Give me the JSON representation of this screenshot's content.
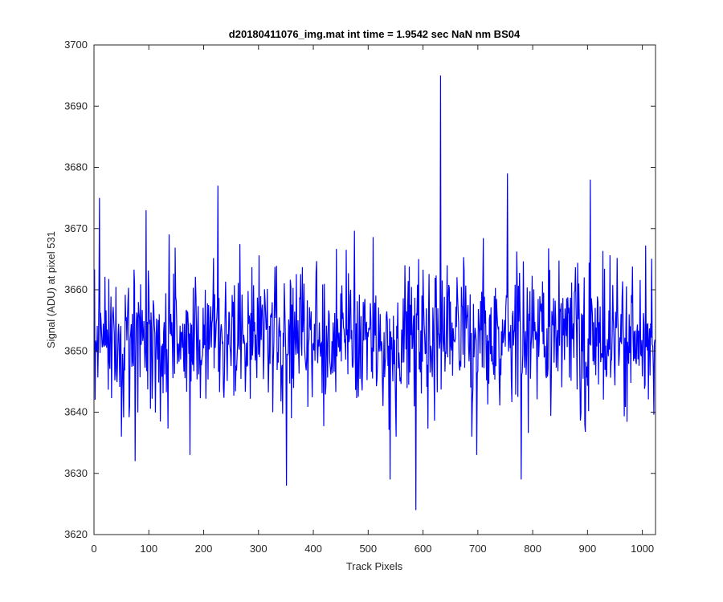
{
  "chart_data": {
    "type": "line",
    "title": "d20180411076_img.mat int time = 1.9542 sec  NaN nm BS04",
    "xlabel": "Track Pixels",
    "ylabel": "Signal (ADU) at pixel 531",
    "xlim": [
      0,
      1024
    ],
    "ylim": [
      3620,
      3700
    ],
    "xticks": [
      0,
      100,
      200,
      300,
      400,
      500,
      600,
      700,
      800,
      900,
      1000
    ],
    "yticks": [
      3620,
      3630,
      3640,
      3650,
      3660,
      3670,
      3680,
      3690,
      3700
    ],
    "grid": false,
    "line_color": "#0000ff",
    "series": [
      {
        "x_start": 1,
        "x_step": 1,
        "count": 1024,
        "baseline": 3652,
        "noise_std": 6,
        "peaks": [
          {
            "x": 10,
            "y": 3675
          },
          {
            "x": 75,
            "y": 3632
          },
          {
            "x": 95,
            "y": 3673
          },
          {
            "x": 175,
            "y": 3633
          },
          {
            "x": 226,
            "y": 3677
          },
          {
            "x": 351,
            "y": 3628
          },
          {
            "x": 540,
            "y": 3629
          },
          {
            "x": 587,
            "y": 3624
          },
          {
            "x": 632,
            "y": 3695
          },
          {
            "x": 698,
            "y": 3633
          },
          {
            "x": 754,
            "y": 3679
          },
          {
            "x": 779,
            "y": 3629
          },
          {
            "x": 905,
            "y": 3678
          }
        ]
      }
    ]
  }
}
